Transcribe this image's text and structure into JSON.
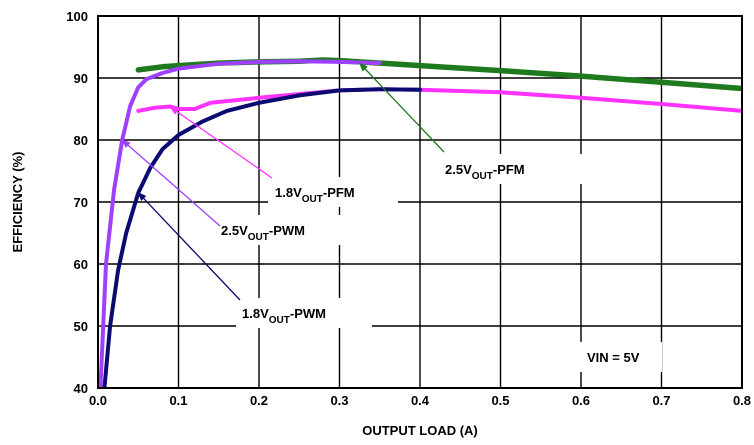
{
  "chart_data": {
    "type": "line",
    "title": "",
    "xlabel": "OUTPUT LOAD (A)",
    "ylabel": "EFFICIENCY (%)",
    "xlim": [
      0,
      0.8
    ],
    "ylim": [
      40,
      100
    ],
    "xticks": [
      "0.0",
      "0.1",
      "0.2",
      "0.3",
      "0.4",
      "0.5",
      "0.6",
      "0.7",
      "0.8"
    ],
    "yticks": [
      "40",
      "50",
      "60",
      "70",
      "80",
      "90",
      "100"
    ],
    "grid": true,
    "legend": "none",
    "series": [
      {
        "name": "2.5VOUT-PFM",
        "label_parts": [
          "2.5V",
          "OUT",
          "-PFM"
        ],
        "color": "#1f7a1f",
        "x": [
          0.05,
          0.08,
          0.1,
          0.15,
          0.2,
          0.25,
          0.28,
          0.3,
          0.35,
          0.4,
          0.5,
          0.6,
          0.7,
          0.8
        ],
        "y": [
          91.3,
          91.8,
          92.0,
          92.4,
          92.6,
          92.7,
          92.9,
          92.8,
          92.4,
          92.0,
          91.2,
          90.3,
          89.3,
          88.3
        ]
      },
      {
        "name": "1.8VOUT-PFM",
        "label_parts": [
          "1.8V",
          "OUT",
          "-PFM"
        ],
        "color": "#ff33ff",
        "x": [
          0.05,
          0.07,
          0.09,
          0.1,
          0.12,
          0.14,
          0.2,
          0.3,
          0.35,
          0.4,
          0.5,
          0.6,
          0.7,
          0.8
        ],
        "y": [
          84.7,
          85.2,
          85.4,
          85.0,
          85.0,
          86.0,
          86.8,
          88.0,
          88.2,
          88.1,
          87.7,
          86.8,
          85.8,
          84.7
        ],
        "note": "dip near 0.1 A"
      },
      {
        "name": "2.5VOUT-PWM",
        "label_parts": [
          "2.5V",
          "OUT",
          "-PWM"
        ],
        "color": "#a040ff",
        "x": [
          0.003,
          0.01,
          0.02,
          0.03,
          0.04,
          0.05,
          0.06,
          0.08,
          0.1,
          0.15,
          0.2,
          0.25,
          0.3,
          0.35
        ],
        "y": [
          40.0,
          60.0,
          72.0,
          80.0,
          85.5,
          88.5,
          89.8,
          90.8,
          91.5,
          92.3,
          92.6,
          92.7,
          92.6,
          92.4
        ]
      },
      {
        "name": "1.8VOUT-PWM",
        "label_parts": [
          "1.8V",
          "OUT",
          "-PWM"
        ],
        "color": "#0a0a70",
        "x": [
          0.008,
          0.015,
          0.025,
          0.035,
          0.05,
          0.065,
          0.08,
          0.1,
          0.13,
          0.16,
          0.2,
          0.25,
          0.3,
          0.35,
          0.4
        ],
        "y": [
          40.0,
          50.0,
          59.0,
          65.0,
          71.5,
          75.5,
          78.5,
          80.8,
          83.0,
          84.7,
          86.0,
          87.2,
          88.0,
          88.2,
          88.1
        ]
      }
    ],
    "annotations": [
      {
        "label_parts": [
          "VIN = 5V"
        ]
      }
    ]
  }
}
